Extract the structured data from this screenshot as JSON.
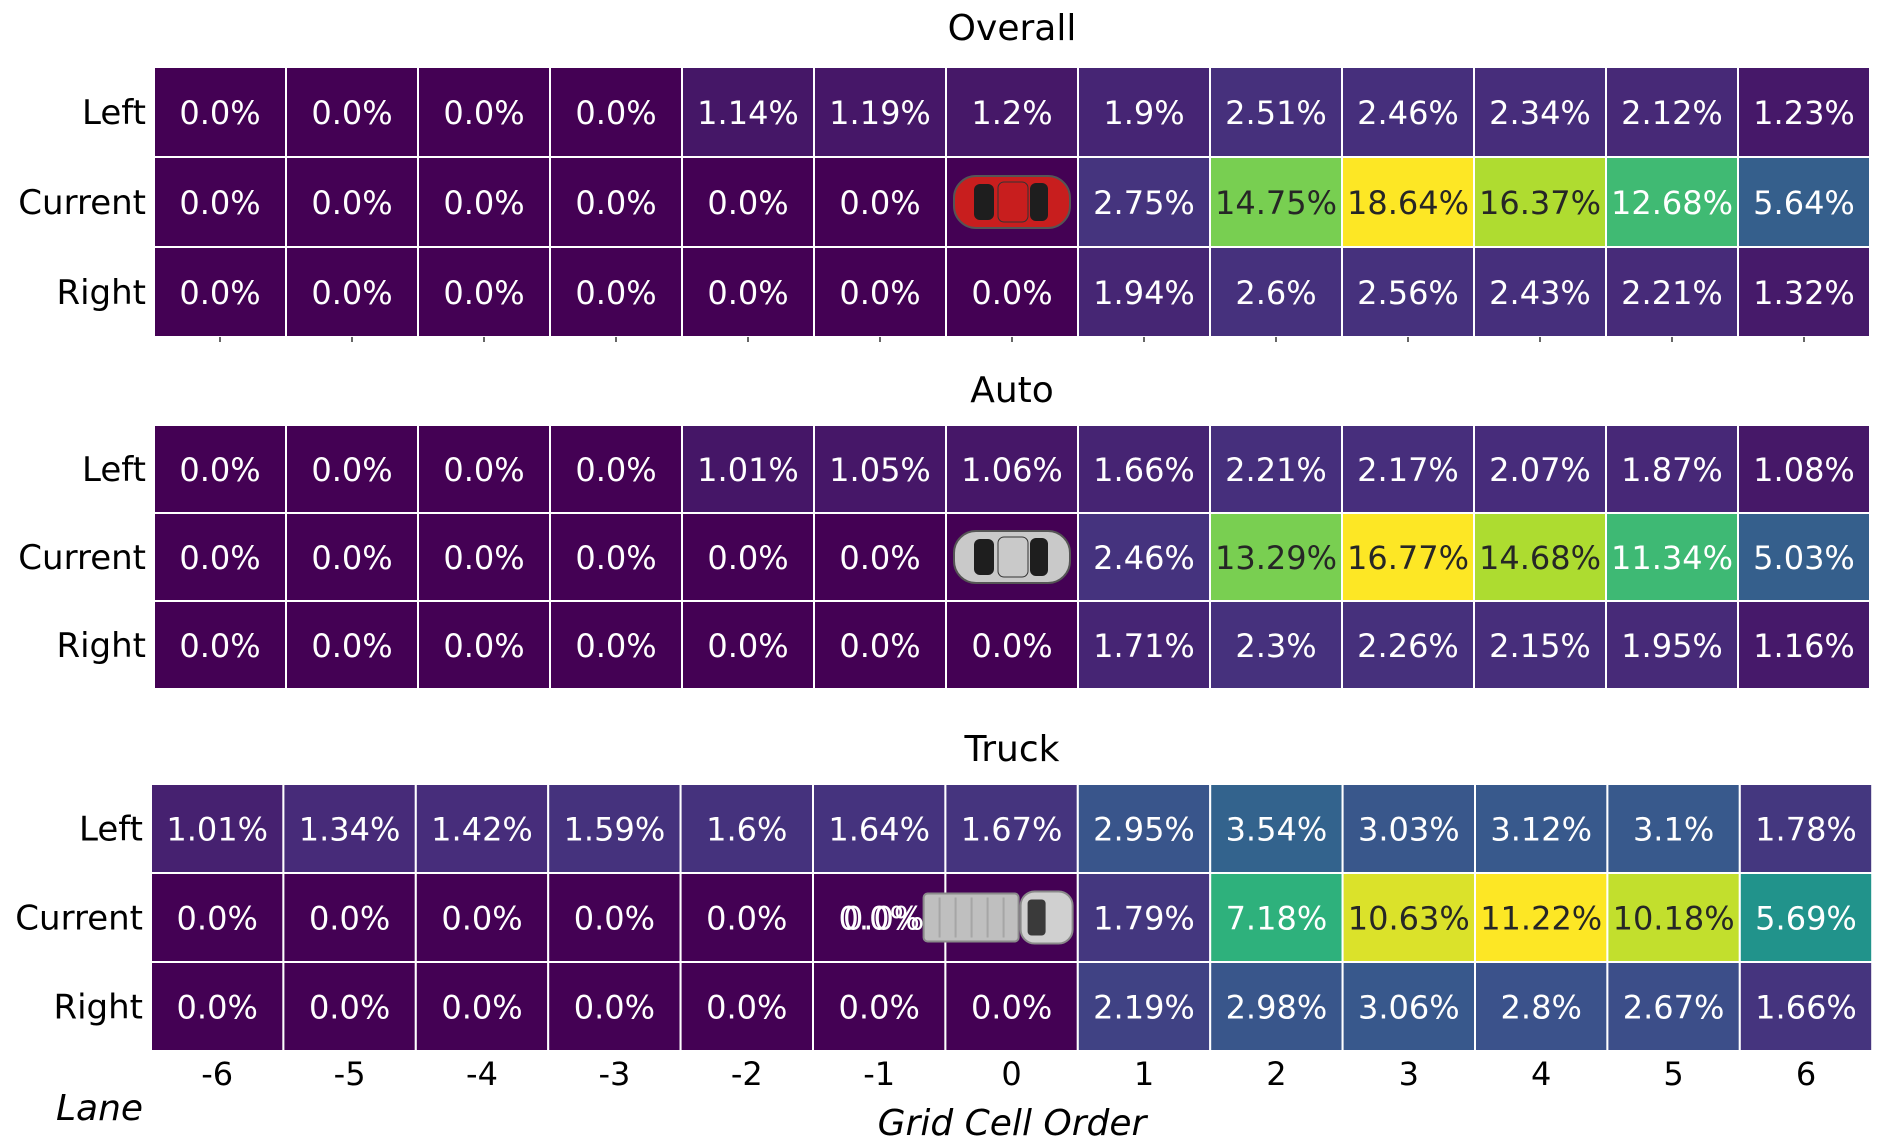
{
  "chart_data": [
    {
      "type": "heatmap",
      "title": "Overall",
      "columns": [
        "-6",
        "-5",
        "-4",
        "-3",
        "-2",
        "-1",
        "0",
        "1",
        "2",
        "3",
        "4",
        "5",
        "6"
      ],
      "rows": [
        "Left",
        "Current",
        "Right"
      ],
      "values": [
        [
          0.0,
          0.0,
          0.0,
          0.0,
          1.14,
          1.19,
          1.2,
          1.9,
          2.51,
          2.46,
          2.34,
          2.12,
          1.23
        ],
        [
          0.0,
          0.0,
          0.0,
          0.0,
          0.0,
          0.0,
          null,
          2.75,
          14.75,
          18.64,
          16.37,
          12.68,
          5.64
        ],
        [
          0.0,
          0.0,
          0.0,
          0.0,
          0.0,
          0.0,
          0.0,
          1.94,
          2.6,
          2.56,
          2.43,
          2.21,
          1.32
        ]
      ],
      "labels": [
        [
          "0.0%",
          "0.0%",
          "0.0%",
          "0.0%",
          "1.14%",
          "1.19%",
          "1.2%",
          "1.9%",
          "2.51%",
          "2.46%",
          "2.34%",
          "2.12%",
          "1.23%"
        ],
        [
          "0.0%",
          "0.0%",
          "0.0%",
          "0.0%",
          "0.0%",
          "0.0%",
          "",
          "2.75%",
          "14.75%",
          "18.64%",
          "16.37%",
          "12.68%",
          "5.64%"
        ],
        [
          "0.0%",
          "0.0%",
          "0.0%",
          "0.0%",
          "0.0%",
          "0.0%",
          "0.0%",
          "1.94%",
          "2.6%",
          "2.56%",
          "2.43%",
          "2.21%",
          "1.32%"
        ]
      ],
      "vmax": 18.64,
      "ego_vehicle": {
        "icon": "red-car-icon",
        "row": 1,
        "col": 6,
        "color": "#c81e1e"
      }
    },
    {
      "type": "heatmap",
      "title": "Auto",
      "columns": [
        "-6",
        "-5",
        "-4",
        "-3",
        "-2",
        "-1",
        "0",
        "1",
        "2",
        "3",
        "4",
        "5",
        "6"
      ],
      "rows": [
        "Left",
        "Current",
        "Right"
      ],
      "values": [
        [
          0.0,
          0.0,
          0.0,
          0.0,
          1.01,
          1.05,
          1.06,
          1.66,
          2.21,
          2.17,
          2.07,
          1.87,
          1.08
        ],
        [
          0.0,
          0.0,
          0.0,
          0.0,
          0.0,
          0.0,
          null,
          2.46,
          13.29,
          16.77,
          14.68,
          11.34,
          5.03
        ],
        [
          0.0,
          0.0,
          0.0,
          0.0,
          0.0,
          0.0,
          0.0,
          1.71,
          2.3,
          2.26,
          2.15,
          1.95,
          1.16
        ]
      ],
      "labels": [
        [
          "0.0%",
          "0.0%",
          "0.0%",
          "0.0%",
          "1.01%",
          "1.05%",
          "1.06%",
          "1.66%",
          "2.21%",
          "2.17%",
          "2.07%",
          "1.87%",
          "1.08%"
        ],
        [
          "0.0%",
          "0.0%",
          "0.0%",
          "0.0%",
          "0.0%",
          "0.0%",
          "",
          "2.46%",
          "13.29%",
          "16.77%",
          "14.68%",
          "11.34%",
          "5.03%"
        ],
        [
          "0.0%",
          "0.0%",
          "0.0%",
          "0.0%",
          "0.0%",
          "0.0%",
          "0.0%",
          "1.71%",
          "2.3%",
          "2.26%",
          "2.15%",
          "1.95%",
          "1.16%"
        ]
      ],
      "vmax": 16.77,
      "ego_vehicle": {
        "icon": "silver-car-icon",
        "row": 1,
        "col": 6,
        "color": "#c9c9c9"
      }
    },
    {
      "type": "heatmap",
      "title": "Truck",
      "columns": [
        "-6",
        "-5",
        "-4",
        "-3",
        "-2",
        "-1",
        "0",
        "1",
        "2",
        "3",
        "4",
        "5",
        "6"
      ],
      "rows": [
        "Left",
        "Current",
        "Right"
      ],
      "values": [
        [
          1.01,
          1.34,
          1.42,
          1.59,
          1.6,
          1.64,
          1.67,
          2.95,
          3.54,
          3.03,
          3.12,
          3.1,
          1.78
        ],
        [
          0.0,
          0.0,
          0.0,
          0.0,
          0.0,
          0.0,
          null,
          1.79,
          7.18,
          10.63,
          11.22,
          10.18,
          5.69
        ],
        [
          0.0,
          0.0,
          0.0,
          0.0,
          0.0,
          0.0,
          0.0,
          2.19,
          2.98,
          3.06,
          2.8,
          2.67,
          1.66
        ]
      ],
      "labels": [
        [
          "1.01%",
          "1.34%",
          "1.42%",
          "1.59%",
          "1.6%",
          "1.64%",
          "1.67%",
          "2.95%",
          "3.54%",
          "3.03%",
          "3.12%",
          "3.1%",
          "1.78%"
        ],
        [
          "0.0%",
          "0.0%",
          "0.0%",
          "0.0%",
          "0.0%",
          "0.0%",
          "",
          "1.79%",
          "7.18%",
          "10.63%",
          "11.22%",
          "10.18%",
          "5.69%"
        ],
        [
          "0.0%",
          "0.0%",
          "0.0%",
          "0.0%",
          "0.0%",
          "0.0%",
          "0.0%",
          "2.19%",
          "2.98%",
          "3.06%",
          "2.8%",
          "2.67%",
          "1.66%"
        ]
      ],
      "vmax": 11.22,
      "ego_vehicle": {
        "icon": "pickup-truck-icon",
        "row": 1,
        "col": 6,
        "extra_label": "0.0%",
        "color": "#d0d0d0"
      }
    }
  ],
  "axis": {
    "xlabel": "Grid Cell Order",
    "lane_label": "Lane",
    "ticks": [
      "-6",
      "-5",
      "-4",
      "-3",
      "-2",
      "-1",
      "0",
      "1",
      "2",
      "3",
      "4",
      "5",
      "6"
    ]
  },
  "colormap": "viridis",
  "cell_border_color": "#ffffff"
}
